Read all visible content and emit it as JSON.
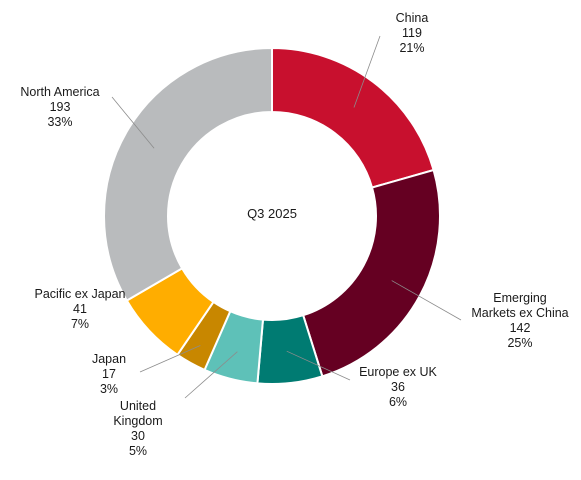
{
  "chart_data": {
    "type": "pie",
    "variant": "donut",
    "center_text": "Q3 2025",
    "slices": [
      {
        "name": "China",
        "label_lines": [
          "China"
        ],
        "value": 119,
        "percent": "21%",
        "color": "#c8102e"
      },
      {
        "name": "Emerging Markets ex China",
        "label_lines": [
          "Emerging",
          "Markets ex China"
        ],
        "value": 142,
        "percent": "25%",
        "color": "#650022"
      },
      {
        "name": "Europe ex UK",
        "label_lines": [
          "Europe ex UK"
        ],
        "value": 36,
        "percent": "6%",
        "color": "#007b72"
      },
      {
        "name": "United Kingdom",
        "label_lines": [
          "United",
          "Kingdom"
        ],
        "value": 30,
        "percent": "5%",
        "color": "#5ec1b8"
      },
      {
        "name": "Japan",
        "label_lines": [
          "Japan"
        ],
        "value": 17,
        "percent": "3%",
        "color": "#c88700"
      },
      {
        "name": "Pacific ex Japan",
        "label_lines": [
          "Pacific ex Japan"
        ],
        "value": 41,
        "percent": "7%",
        "color": "#ffad00"
      },
      {
        "name": "North America",
        "label_lines": [
          "North America"
        ],
        "value": 193,
        "percent": "33%",
        "color": "#b9bbbd"
      }
    ]
  }
}
